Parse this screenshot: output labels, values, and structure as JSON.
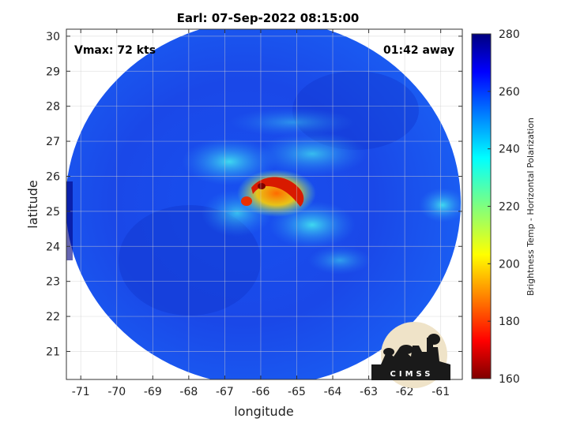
{
  "chart_data": {
    "type": "heatmap",
    "title": "Earl: 07-Sep-2022 08:15:00",
    "xlabel": "longitude",
    "ylabel": "latitude",
    "xlim": [
      -71.4,
      -60.4
    ],
    "ylim": [
      20.2,
      30.2
    ],
    "xticks": [
      -71,
      -70,
      -69,
      -68,
      -67,
      -66,
      -65,
      -64,
      -63,
      -62,
      -61
    ],
    "yticks": [
      21,
      22,
      23,
      24,
      25,
      26,
      27,
      28,
      29,
      30
    ],
    "grid": true,
    "annotations": {
      "left": "Vmax: 72 kts",
      "right": "01:42 away"
    },
    "colorbar": {
      "label": "Brightness Temp - Horizontal Polarization",
      "min": 160,
      "max": 280,
      "ticks": [
        160,
        180,
        200,
        220,
        240,
        260,
        280
      ],
      "colormap": "jet"
    },
    "swath_center": [
      -66.0,
      25.2
    ],
    "features": [
      {
        "kind": "eyewall",
        "center": [
          -65.6,
          25.4
        ],
        "value": 175
      },
      {
        "kind": "rainband",
        "center": [
          -66.5,
          25.6
        ],
        "value": 215
      },
      {
        "kind": "rainband",
        "center": [
          -65.0,
          24.8
        ],
        "value": 225
      },
      {
        "kind": "outer_band",
        "center": [
          -61.0,
          25.3
        ],
        "value": 235
      }
    ]
  },
  "logo": {
    "text": "CIMSS"
  }
}
